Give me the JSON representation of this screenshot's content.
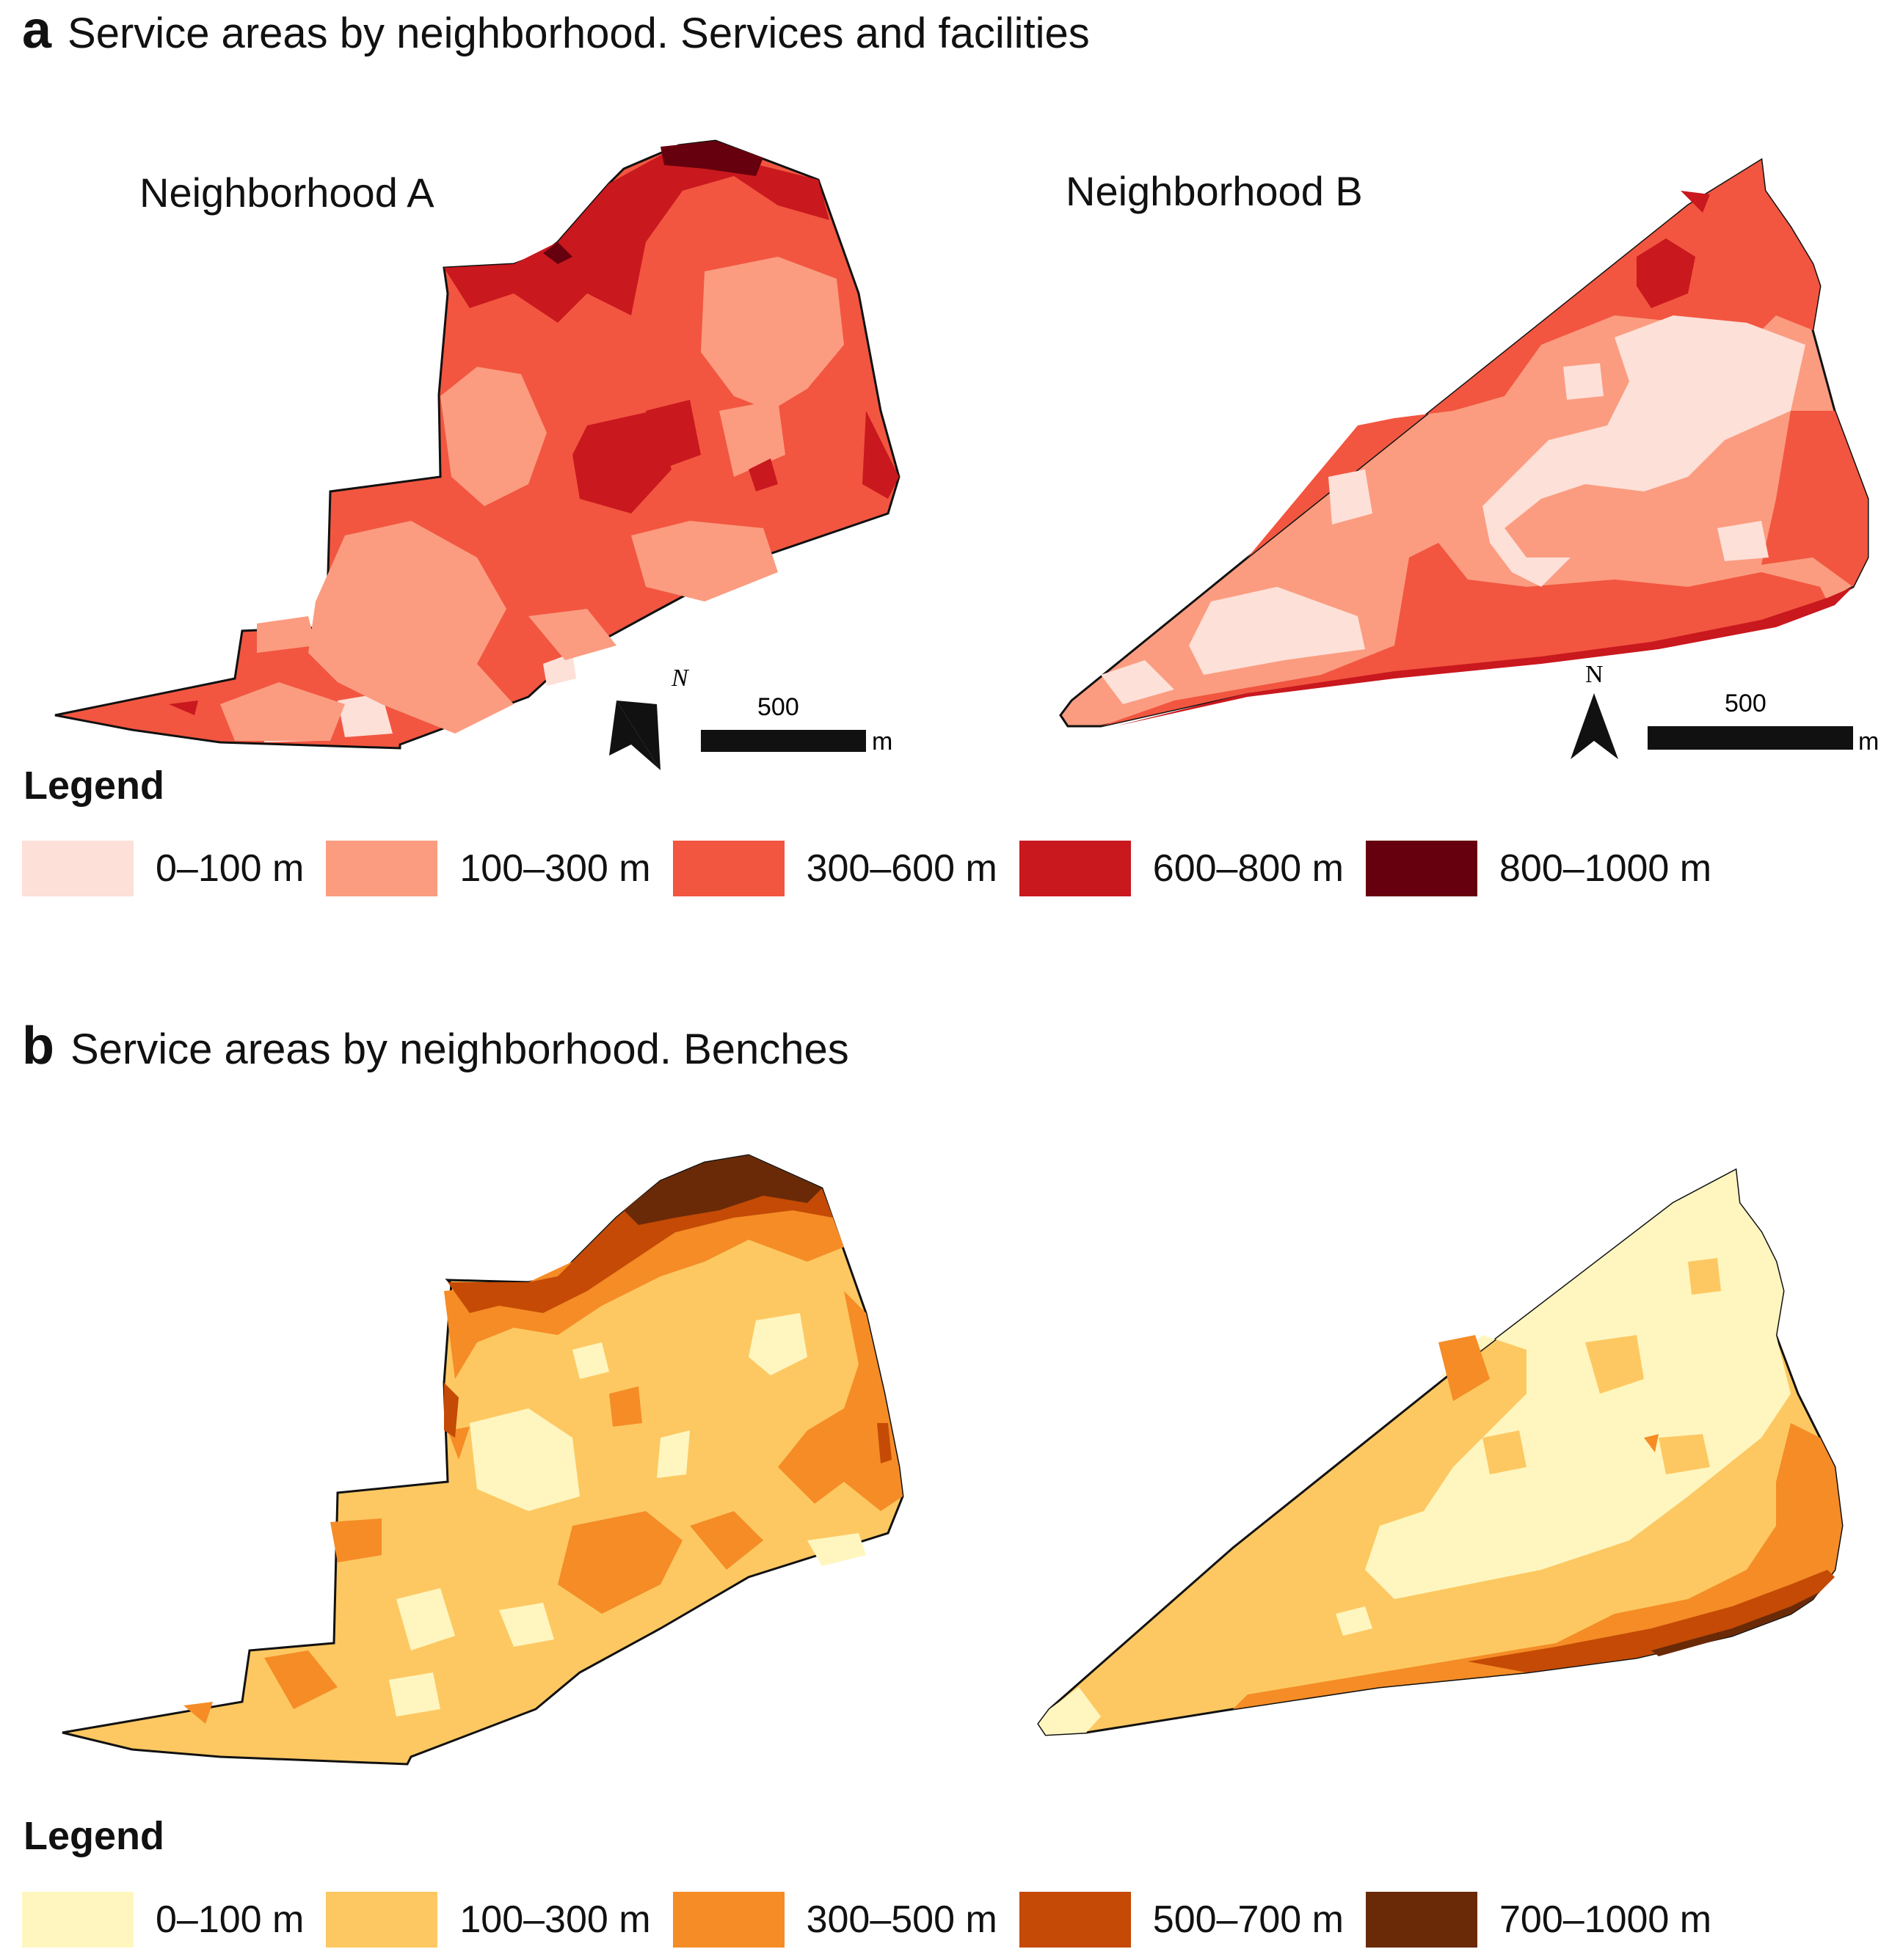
{
  "panel_a": {
    "letter": "a",
    "title": "Service areas by neighborhood. Services and facilities",
    "neighborhood_a_label": "Neighborhood A",
    "neighborhood_b_label": "Neighborhood B",
    "north_label": "N",
    "scale_value": "500",
    "scale_unit": "m",
    "legend_title": "Legend",
    "legend": [
      {
        "label": "0–100 m",
        "color": "#fde0d8"
      },
      {
        "label": "100–300 m",
        "color": "#fb9c80"
      },
      {
        "label": "300–600 m",
        "color": "#f25640"
      },
      {
        "label": "600–800 m",
        "color": "#c9181e"
      },
      {
        "label": "800–1000 m",
        "color": "#66000e"
      }
    ]
  },
  "panel_b": {
    "letter": "b",
    "title": "Service areas by neighborhood. Benches",
    "legend_title": "Legend",
    "legend": [
      {
        "label": "0–100 m",
        "color": "#fff6bf"
      },
      {
        "label": "100–300 m",
        "color": "#fdc862"
      },
      {
        "label": "300–500 m",
        "color": "#f58c26"
      },
      {
        "label": "500–700 m",
        "color": "#c44a05"
      },
      {
        "label": "700–1000 m",
        "color": "#6a2a08"
      }
    ]
  }
}
